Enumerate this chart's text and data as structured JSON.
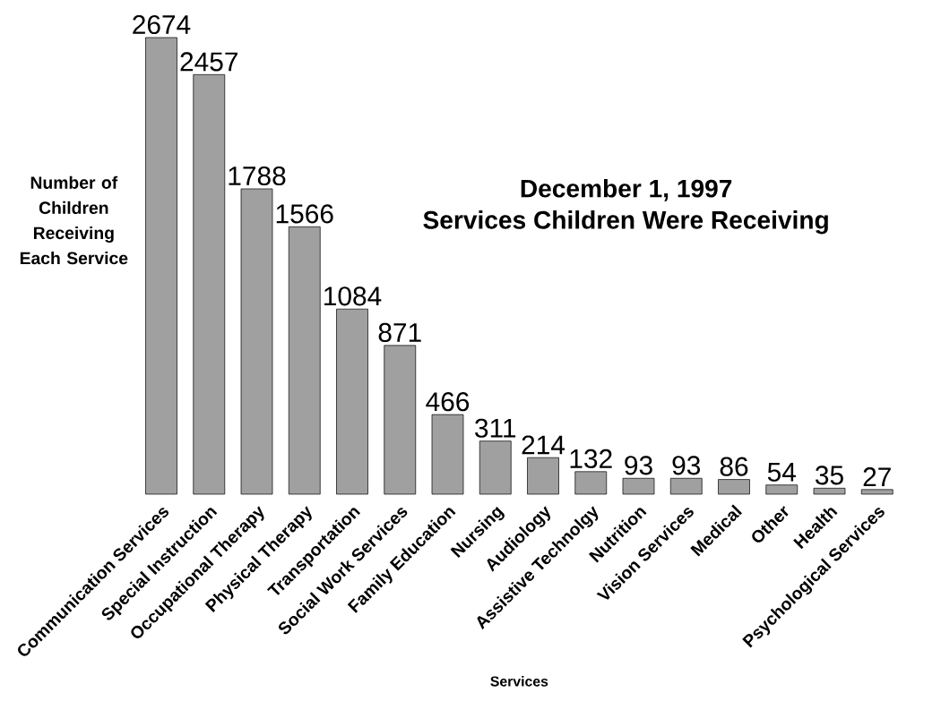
{
  "chart_data": {
    "type": "bar",
    "title": "December 1, 1997",
    "subtitle": "Services Children Were Receiving",
    "xlabel": "Services",
    "ylabel": "Number of Children Receiving Each Service",
    "categories": [
      "Communication Services",
      "Special Instruction",
      "Occupational Therapy",
      "Physical Therapy",
      "Transportation",
      "Social Work Services",
      "Family Education",
      "Nursing",
      "Audiology",
      "Assistive Technolgy",
      "Nutrition",
      "Vision Services",
      "Medical",
      "Other",
      "Health",
      "Psychological Services"
    ],
    "values": [
      2674,
      2457,
      1788,
      1566,
      1084,
      871,
      466,
      311,
      214,
      132,
      93,
      93,
      86,
      54,
      35,
      27
    ],
    "color": "#a0a0a0",
    "data_labels": true
  }
}
